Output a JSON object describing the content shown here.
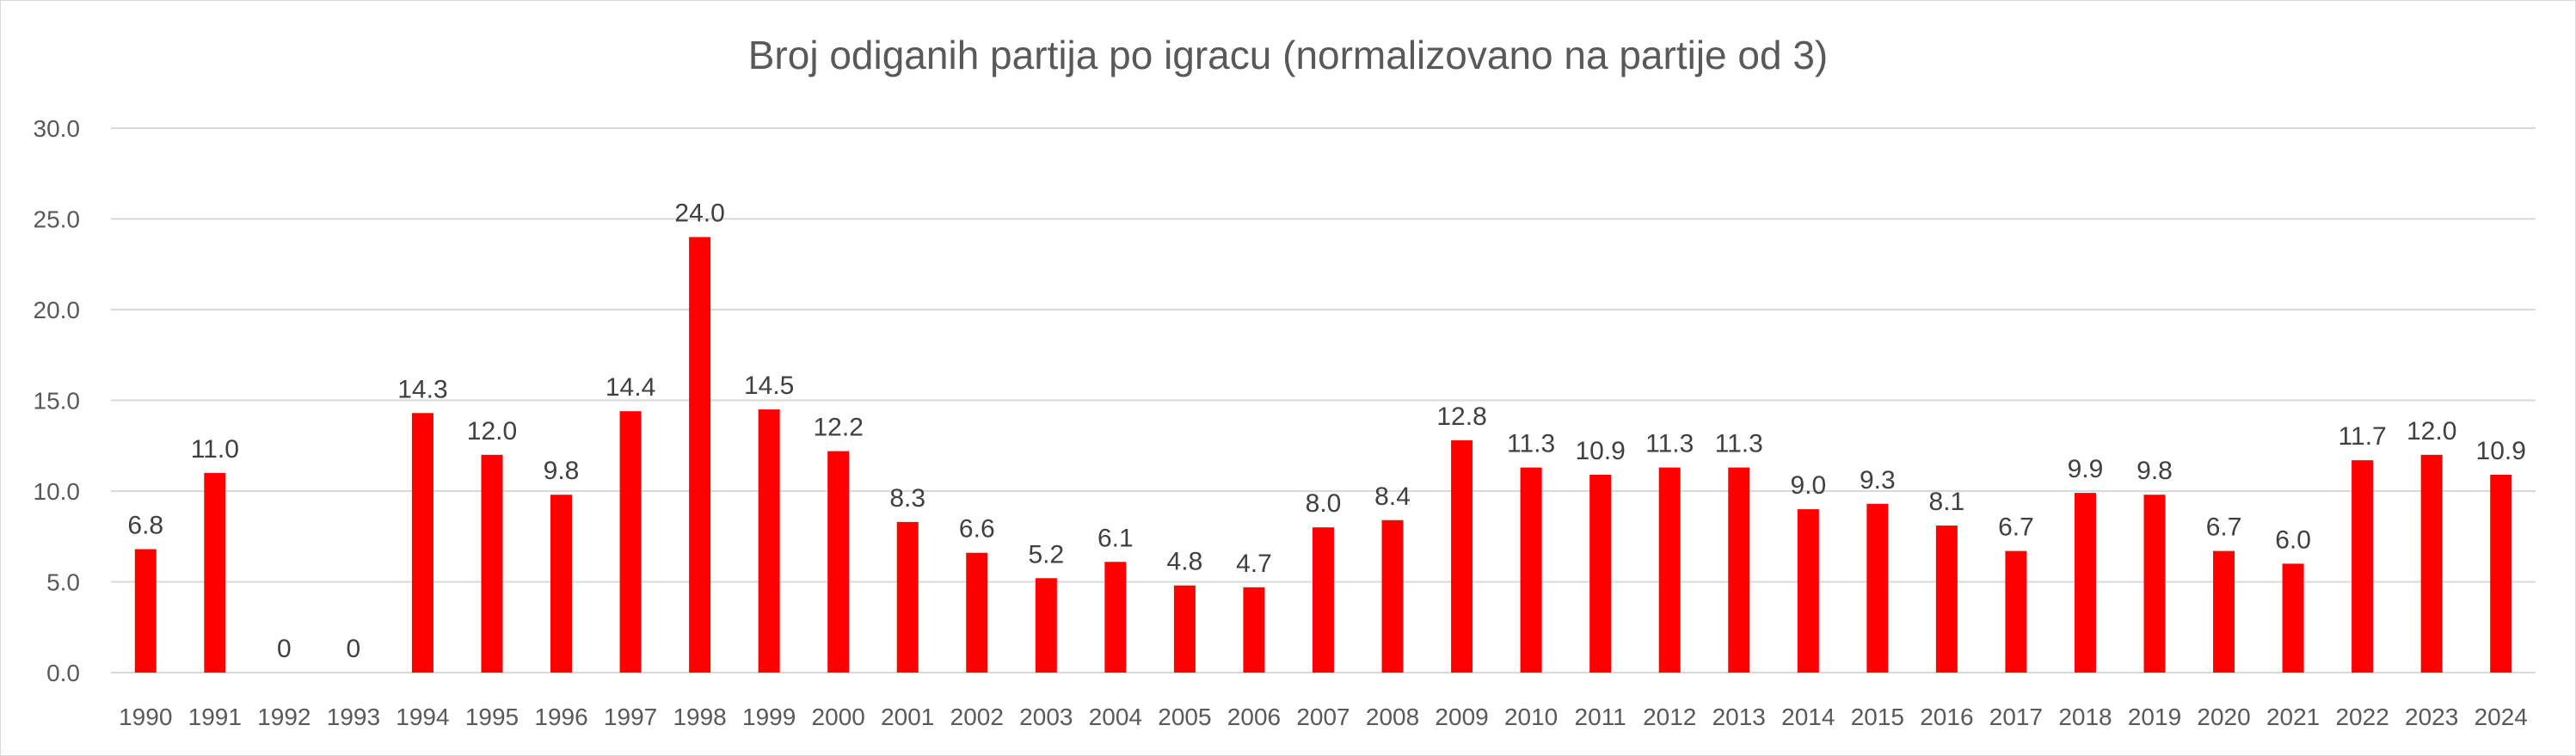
{
  "chart_data": {
    "type": "bar",
    "title": "Broj odiganih partija po igracu (normalizovano na partije od 3)",
    "xlabel": "",
    "ylabel": "",
    "ylim": [
      0,
      30
    ],
    "y_ticks": [
      "0.0",
      "5.0",
      "10.0",
      "15.0",
      "20.0",
      "25.0",
      "30.0"
    ],
    "grid": true,
    "legend": "none",
    "bar_color": "#ff0000",
    "categories": [
      "1990",
      "1991",
      "1992",
      "1993",
      "1994",
      "1995",
      "1996",
      "1997",
      "1998",
      "1999",
      "2000",
      "2001",
      "2002",
      "2003",
      "2004",
      "2005",
      "2006",
      "2007",
      "2008",
      "2009",
      "2010",
      "2011",
      "2012",
      "2013",
      "2014",
      "2015",
      "2016",
      "2017",
      "2018",
      "2019",
      "2020",
      "2021",
      "2022",
      "2023",
      "2024"
    ],
    "values": [
      6.8,
      11.0,
      0,
      0,
      14.3,
      12.0,
      9.8,
      14.4,
      24.0,
      14.5,
      12.2,
      8.3,
      6.6,
      5.2,
      6.1,
      4.8,
      4.7,
      8.0,
      8.4,
      12.8,
      11.3,
      10.9,
      11.3,
      11.3,
      9.0,
      9.3,
      8.1,
      6.7,
      9.9,
      9.8,
      6.7,
      6.0,
      11.7,
      12.0,
      10.9
    ],
    "data_labels": [
      "6.8",
      "11.0",
      "0",
      "0",
      "14.3",
      "12.0",
      "9.8",
      "14.4",
      "24.0",
      "14.5",
      "12.2",
      "8.3",
      "6.6",
      "5.2",
      "6.1",
      "4.8",
      "4.7",
      "8.0",
      "8.4",
      "12.8",
      "11.3",
      "10.9",
      "11.3",
      "11.3",
      "9.0",
      "9.3",
      "8.1",
      "6.7",
      "9.9",
      "9.8",
      "6.7",
      "6.0",
      "11.7",
      "12.0",
      "10.9"
    ]
  }
}
